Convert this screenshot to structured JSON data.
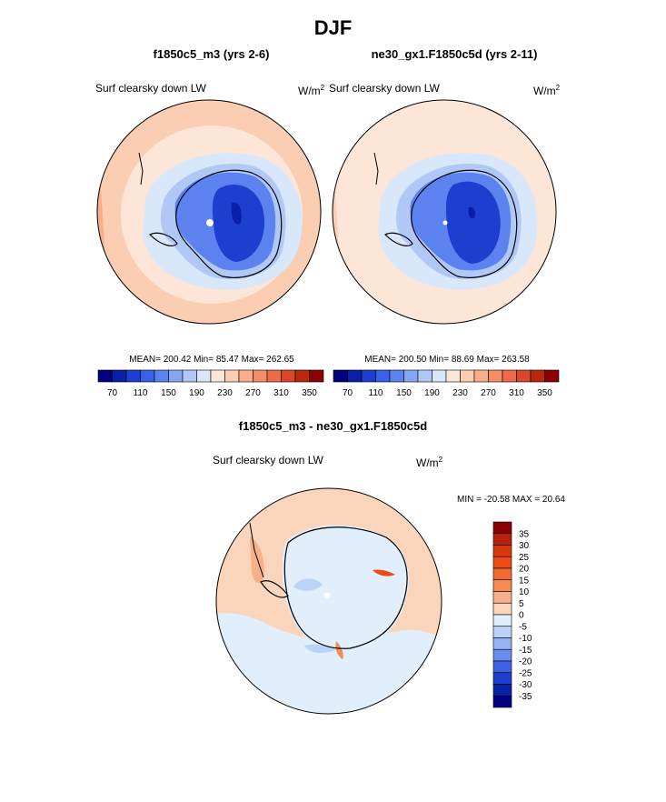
{
  "title": "DJF",
  "panels": [
    {
      "header": "f1850c5_m3 (yrs 2-6)",
      "left_label": "Surf clearsky down LW",
      "units_base": "W/m",
      "units_exp": "2",
      "stats": "MEAN= 200.42  Min=  85.47  Max= 262.65"
    },
    {
      "header": "ne30_gx1.F1850c5d (yrs 2-11)",
      "left_label": "Surf clearsky down LW",
      "units_base": "W/m",
      "units_exp": "2",
      "stats": "MEAN= 200.50  Min=  88.69  Max= 263.58"
    }
  ],
  "diff": {
    "header": "f1850c5_m3 - ne30_gx1.F1850c5d",
    "left_label": "Surf clearsky down LW",
    "units_base": "W/m",
    "units_exp": "2",
    "minmax": "MIN = -20.58 MAX =  20.64"
  },
  "colorbar_main": {
    "colors": [
      "#000080",
      "#0a1fa8",
      "#1c3fd0",
      "#3a5fe8",
      "#5c82ef",
      "#86a5f3",
      "#b1c8f7",
      "#d9e7fb",
      "#fde6d7",
      "#fbcdb2",
      "#f8ae8c",
      "#f48e6a",
      "#ec6b48",
      "#d9472a",
      "#b8280f",
      "#8b0000"
    ],
    "tick_labels": [
      "70",
      "110",
      "150",
      "190",
      "230",
      "270",
      "310",
      "350"
    ]
  },
  "colorbar_diff": {
    "colors": [
      "#8b0000",
      "#b8200a",
      "#d9380f",
      "#ec4a16",
      "#f26a30",
      "#f38d55",
      "#f6b08a",
      "#fbd5bb",
      "#e1eefb",
      "#bad3f6",
      "#95b3f3",
      "#6b8df0",
      "#3f62e4",
      "#1c3fd0",
      "#0a22a6",
      "#000080"
    ],
    "tick_labels": [
      "35",
      "30",
      "25",
      "20",
      "15",
      "10",
      "5",
      "0",
      "-5",
      "-10",
      "-15",
      "-20",
      "-25",
      "-30",
      "-35"
    ]
  }
}
